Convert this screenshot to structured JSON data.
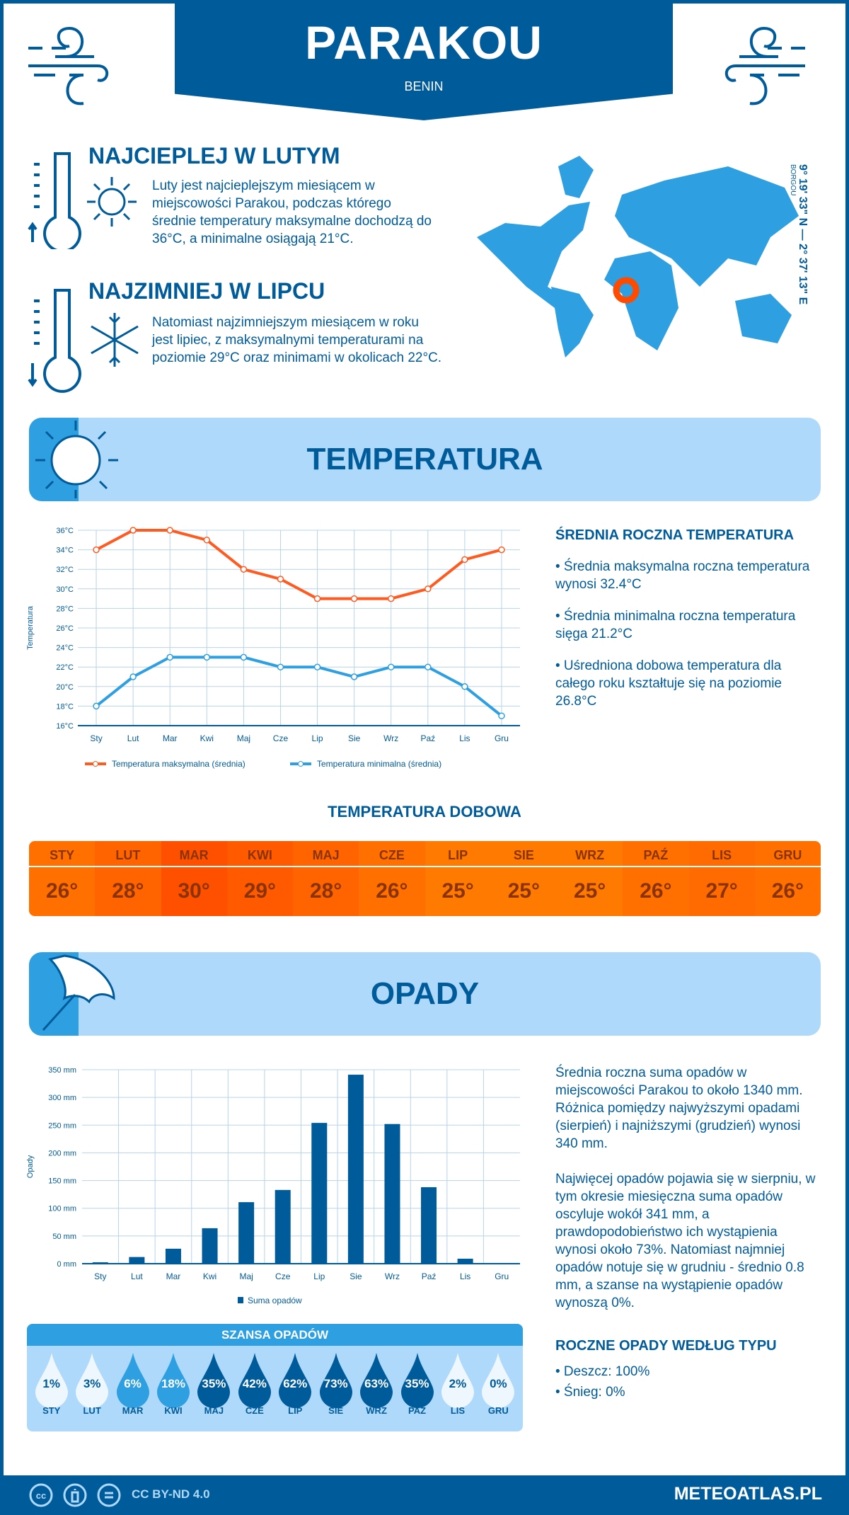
{
  "header": {
    "city": "PARAKOU",
    "country": "BENIN"
  },
  "warm": {
    "title": "NAJCIEPLEJ W LUTYM",
    "text": "Luty jest najcieplejszym miesiącem w miejscowości Parakou, podczas którego średnie temperatury maksymalne dochodzą do 36°C, a minimalne osiągają 21°C."
  },
  "cold": {
    "title": "NAJZIMNIEJ W LIPCU",
    "text": "Natomiast najzimniejszym miesiącem w roku jest lipiec, z maksymalnymi temperaturami na poziomie 29°C oraz minimami w okolicach 22°C."
  },
  "location": {
    "coordinates": "9° 19' 33\" N — 2° 37' 13\" E",
    "region": "BORGOU"
  },
  "temperature_section": {
    "title": "TEMPERATURA"
  },
  "temperature_summary": {
    "title": "ŚREDNIA ROCZNA TEMPERATURA",
    "items": [
      "• Średnia maksymalna roczna temperatura wynosi 32.4°C",
      "• Średnia minimalna roczna temperatura sięga 21.2°C",
      "• Uśredniona dobowa temperatura dla całego roku kształtuje się na poziomie 26.8°C"
    ]
  },
  "daily": {
    "title": "TEMPERATURA DOBOWA",
    "months": [
      "STY",
      "LUT",
      "MAR",
      "KWI",
      "MAJ",
      "CZE",
      "LIP",
      "SIE",
      "WRZ",
      "PAŹ",
      "LIS",
      "GRU"
    ],
    "values": [
      "26°",
      "28°",
      "30°",
      "29°",
      "28°",
      "26°",
      "25°",
      "25°",
      "25°",
      "26°",
      "27°",
      "26°"
    ],
    "colors": [
      "#ff7000",
      "#ff6400",
      "#ff5000",
      "#ff5a00",
      "#ff6400",
      "#ff7000",
      "#ff7a00",
      "#ff7a00",
      "#ff7a00",
      "#ff7000",
      "#ff6b00",
      "#ff7000"
    ]
  },
  "precip_section": {
    "title": "OPADY"
  },
  "precip_summary": {
    "p1": "Średnia roczna suma opadów w miejscowości Parakou to około 1340 mm. Różnica pomiędzy najwyższymi opadami (sierpień) i najniższymi (grudzień) wynosi 340 mm.",
    "p2": "Najwięcej opadów pojawia się w sierpniu, w tym okresie miesięczna suma opadów oscyluje wokół 341 mm, a prawdopodobieństwo ich wystąpienia wynosi około 73%. Natomiast najmniej opadów notuje się w grudniu - średnio 0.8 mm, a szanse na wystąpienie opadów wynoszą 0%."
  },
  "chance": {
    "title": "SZANSA OPADÓW",
    "months": [
      "STY",
      "LUT",
      "MAR",
      "KWI",
      "MAJ",
      "CZE",
      "LIP",
      "SIE",
      "WRZ",
      "PAŹ",
      "LIS",
      "GRU"
    ],
    "values": [
      "1%",
      "3%",
      "6%",
      "18%",
      "35%",
      "42%",
      "62%",
      "73%",
      "63%",
      "35%",
      "2%",
      "0%"
    ]
  },
  "precip_type": {
    "title": "ROCZNE OPADY WEDŁUG TYPU",
    "rain": "• Deszcz: 100%",
    "snow": "• Śnieg: 0%"
  },
  "footer": {
    "license": "CC BY-ND 4.0",
    "site": "METEOATLAS.PL"
  },
  "colors": {
    "primary": "#005b9a",
    "accent": "#2e9fe0",
    "light": "#aed9fb",
    "max_line": "#ff5a1f",
    "min_line": "#2e9fe0"
  },
  "chart_data": [
    {
      "type": "line",
      "categories": [
        "Sty",
        "Lut",
        "Mar",
        "Kwi",
        "Maj",
        "Cze",
        "Lip",
        "Sie",
        "Wrz",
        "Paź",
        "Lis",
        "Gru"
      ],
      "ylabel": "Temperatura",
      "ylim": [
        16,
        36
      ],
      "yticks": [
        "16°C",
        "18°C",
        "20°C",
        "22°C",
        "24°C",
        "26°C",
        "28°C",
        "30°C",
        "32°C",
        "34°C",
        "36°C"
      ],
      "grid": true,
      "legend": "bottom",
      "series": [
        {
          "name": "Temperatura maksymalna (średnia)",
          "values": [
            34,
            36,
            36,
            35,
            32,
            31,
            29,
            29,
            29,
            30,
            33,
            34
          ]
        },
        {
          "name": "Temperatura minimalna (średnia)",
          "values": [
            18,
            21,
            23,
            23,
            23,
            22,
            22,
            21,
            22,
            22,
            20,
            17
          ]
        }
      ]
    },
    {
      "type": "bar",
      "categories": [
        "Sty",
        "Lut",
        "Mar",
        "Kwi",
        "Maj",
        "Cze",
        "Lip",
        "Sie",
        "Wrz",
        "Paź",
        "Lis",
        "Gru"
      ],
      "ylabel": "Opady",
      "ylim": [
        0,
        350
      ],
      "yticks": [
        "0 mm",
        "50 mm",
        "100 mm",
        "150 mm",
        "200 mm",
        "250 mm",
        "300 mm",
        "350 mm"
      ],
      "grid": true,
      "legend": "bottom",
      "series": [
        {
          "name": "Suma opadów",
          "values": [
            2.5,
            12,
            27,
            64,
            111,
            133,
            254,
            341,
            252,
            138,
            9,
            0.8
          ]
        }
      ]
    }
  ]
}
